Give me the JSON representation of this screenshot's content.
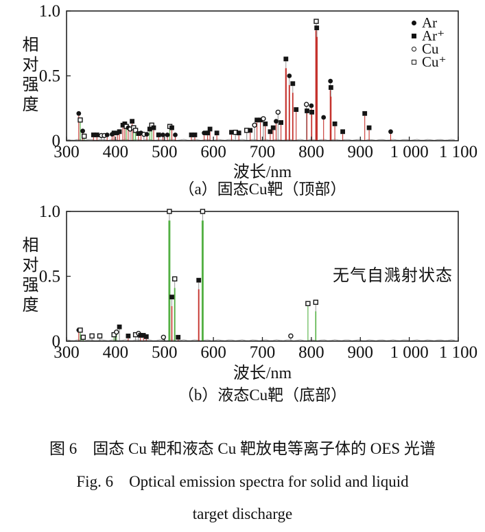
{
  "figure": {
    "caption_cn": "图 6　固态 Cu 靶和液态 Cu 靶放电等离子体的 OES 光谱",
    "caption_en_line1": "Fig. 6　Optical emission spectra for solid and liquid",
    "caption_en_line2": "target discharge"
  },
  "colors": {
    "stem_r": "#c5322d",
    "stem_g": "#53b043",
    "stem_k": "#8f8f8f",
    "marker": "#151515",
    "axis": "#222222",
    "baseline": "#9a9a9a",
    "background": "#ffffff"
  },
  "chart_data": [
    {
      "id": "a",
      "type": "scatter",
      "style": "stem-spectrum",
      "title": "（a）固态Cu靶（顶部）",
      "xlabel": "波长/nm",
      "ylabel": "相对强度",
      "xlim": [
        300,
        1100
      ],
      "ylim": [
        0,
        1.0
      ],
      "grid": false,
      "xticks": {
        "values": [
          300,
          400,
          500,
          600,
          700,
          800,
          900,
          1000,
          1100
        ],
        "labels": [
          "300",
          "400",
          "500",
          "600",
          "700",
          "800",
          "900",
          "1 000",
          "1 100"
        ]
      },
      "yticks": {
        "values": [
          0,
          0.5,
          1.0
        ],
        "labels": [
          "0",
          "0.5",
          "1.0"
        ]
      },
      "legend": {
        "position": "top-right-inside",
        "entries": [
          {
            "marker": "filled-circle",
            "label": "Ar"
          },
          {
            "marker": "filled-square",
            "label": "Ar⁺"
          },
          {
            "marker": "open-circle",
            "label": "Cu"
          },
          {
            "marker": "open-square",
            "label": "Cu⁺"
          }
        ]
      },
      "markers": {
        "Ar": "filled-circle",
        "Ar+": "filled-square",
        "Cu": "open-circle",
        "Cu+": "open-square"
      },
      "peaks_format": [
        "wavelength_nm",
        "relative_intensity",
        "species",
        "stem_color_key"
      ],
      "stem_color_keys": {
        "r": "stem_r",
        "g": "stem_g",
        "k": "stem_k"
      },
      "peaks": [
        [
          325,
          0.21,
          "Ar",
          "r"
        ],
        [
          328,
          0.16,
          "Cu+",
          "g"
        ],
        [
          333,
          0.075,
          "Ar",
          "r"
        ],
        [
          336,
          0.035,
          "Cu+",
          "g"
        ],
        [
          355,
          0.045,
          "Ar+",
          "r"
        ],
        [
          362,
          0.045,
          "Ar+",
          "r"
        ],
        [
          371,
          0.04,
          "Cu",
          "k"
        ],
        [
          377,
          0.04,
          "Cu",
          "k"
        ],
        [
          383,
          0.045,
          "Ar",
          "r"
        ],
        [
          393,
          0.05,
          "Ar",
          "r"
        ],
        [
          397,
          0.06,
          "Ar+",
          "r"
        ],
        [
          404,
          0.06,
          "Ar",
          "r"
        ],
        [
          408,
          0.07,
          "Ar+",
          "r"
        ],
        [
          415,
          0.12,
          "Ar+",
          "r"
        ],
        [
          419,
          0.13,
          "Ar+",
          "r"
        ],
        [
          422,
          0.11,
          "Cu+",
          "g"
        ],
        [
          426,
          0.1,
          "Ar",
          "r"
        ],
        [
          430,
          0.09,
          "Cu",
          "k"
        ],
        [
          434,
          0.15,
          "Ar+",
          "r"
        ],
        [
          437,
          0.1,
          "Cu+",
          "g"
        ],
        [
          441,
          0.08,
          "Cu+",
          "g"
        ],
        [
          447,
          0.055,
          "Ar+",
          "r"
        ],
        [
          452,
          0.06,
          "Ar",
          "r"
        ],
        [
          458,
          0.05,
          "Cu",
          "k"
        ],
        [
          464,
          0.05,
          "Ar",
          "r"
        ],
        [
          470,
          0.09,
          "Ar+",
          "g"
        ],
        [
          474,
          0.12,
          "Cu+",
          "g"
        ],
        [
          478,
          0.1,
          "Ar+",
          "r"
        ],
        [
          488,
          0.045,
          "Ar+",
          "r"
        ],
        [
          497,
          0.045,
          "Ar",
          "r"
        ],
        [
          506,
          0.045,
          "Ar",
          "r"
        ],
        [
          511,
          0.11,
          "Cu+",
          "g"
        ],
        [
          515,
          0.1,
          "Ar+",
          "r"
        ],
        [
          522,
          0.045,
          "Ar",
          "r"
        ],
        [
          555,
          0.045,
          "Ar+",
          "r"
        ],
        [
          562,
          0.045,
          "Ar+",
          "r"
        ],
        [
          581,
          0.06,
          "Ar",
          "r"
        ],
        [
          588,
          0.06,
          "Ar+",
          "r"
        ],
        [
          593,
          0.09,
          "Ar+",
          "r"
        ],
        [
          607,
          0.06,
          "Ar+",
          "r"
        ],
        [
          637,
          0.065,
          "Ar+",
          "r"
        ],
        [
          645,
          0.065,
          "Cu+",
          "k"
        ],
        [
          652,
          0.06,
          "Ar+",
          "r"
        ],
        [
          668,
          0.08,
          "Cu+",
          "k"
        ],
        [
          675,
          0.08,
          "Ar+",
          "r"
        ],
        [
          684,
          0.12,
          "Cu",
          "k"
        ],
        [
          689,
          0.16,
          "Ar+",
          "r"
        ],
        [
          696,
          0.16,
          "Ar+",
          "r"
        ],
        [
          702,
          0.17,
          "Cu",
          "k"
        ],
        [
          706,
          0.13,
          "Ar+",
          "r"
        ],
        [
          716,
          0.07,
          "Ar+",
          "r"
        ],
        [
          722,
          0.1,
          "Ar+",
          "r"
        ],
        [
          728,
          0.15,
          "Ar",
          "r"
        ],
        [
          732,
          0.22,
          "Cu",
          "k"
        ],
        [
          738,
          0.14,
          "Ar+",
          "r"
        ],
        [
          748,
          0.63,
          "Ar+",
          "r"
        ],
        [
          755,
          0.5,
          "Ar",
          "r"
        ],
        [
          762,
          0.44,
          "Ar+",
          "r"
        ],
        [
          769,
          0.24,
          "Ar+",
          "r"
        ],
        [
          790,
          0.28,
          "Cu",
          "k"
        ],
        [
          791,
          0.23,
          "Ar+",
          "r"
        ],
        [
          800,
          0.27,
          "Ar",
          "r"
        ],
        [
          801,
          0.22,
          "Ar+",
          "r"
        ],
        [
          810,
          0.92,
          "Cu+",
          "r"
        ],
        [
          811,
          0.87,
          "Ar+",
          "r"
        ],
        [
          825,
          0.18,
          "Ar",
          "r"
        ],
        [
          839,
          0.46,
          "Ar",
          "r"
        ],
        [
          840,
          0.41,
          "Ar+",
          "r"
        ],
        [
          848,
          0.13,
          "Ar+",
          "r"
        ],
        [
          864,
          0.07,
          "Ar+",
          "r"
        ],
        [
          909,
          0.21,
          "Ar+",
          "r"
        ],
        [
          918,
          0.1,
          "Ar+",
          "r"
        ],
        [
          962,
          0.07,
          "Ar",
          "r"
        ]
      ]
    },
    {
      "id": "b",
      "type": "scatter",
      "style": "stem-spectrum",
      "title": "（b）液态Cu靶（底部）",
      "xlabel": "波长/nm",
      "ylabel": "相对强度",
      "annotation": {
        "text": "无气自溅射状态",
        "position": "right-center"
      },
      "xlim": [
        300,
        1100
      ],
      "ylim": [
        0,
        1.0
      ],
      "grid": false,
      "xticks": {
        "values": [
          300,
          400,
          500,
          600,
          700,
          800,
          900,
          1000,
          1100
        ],
        "labels": [
          "300",
          "400",
          "500",
          "600",
          "700",
          "800",
          "900",
          "1 000",
          "1 100"
        ]
      },
      "yticks": {
        "values": [
          0,
          0.5,
          1.0
        ],
        "labels": [
          "0",
          "0.5",
          "1.0"
        ]
      },
      "markers": {
        "Ar": "filled-circle",
        "Ar+": "filled-square",
        "Cu": "open-circle",
        "Cu+": "open-square"
      },
      "peaks_format": [
        "wavelength_nm",
        "relative_intensity",
        "species",
        "stem_color_key"
      ],
      "stem_color_keys": {
        "r": "stem_r",
        "g": "stem_g",
        "k": "stem_k"
      },
      "peaks": [
        [
          325,
          0.085,
          "Ar",
          "r"
        ],
        [
          328,
          0.085,
          "Cu+",
          "g"
        ],
        [
          334,
          0.03,
          "Cu+",
          "g"
        ],
        [
          352,
          0.04,
          "Cu+",
          "k"
        ],
        [
          368,
          0.04,
          "Cu+",
          "k"
        ],
        [
          397,
          0.05,
          "Cu+",
          "g"
        ],
        [
          402,
          0.07,
          "Cu",
          "g"
        ],
        [
          408,
          0.11,
          "Ar+",
          "k"
        ],
        [
          426,
          0.04,
          "Ar+",
          "r"
        ],
        [
          441,
          0.05,
          "Cu+",
          "k"
        ],
        [
          447,
          0.06,
          "Cu",
          "k"
        ],
        [
          451,
          0.045,
          "Ar+",
          "r"
        ],
        [
          457,
          0.045,
          "Ar+",
          "r"
        ],
        [
          463,
          0.035,
          "Ar+",
          "r"
        ],
        [
          498,
          0.03,
          "Cu",
          "k"
        ],
        [
          510,
          1.0,
          "Cu+",
          "g"
        ],
        [
          515,
          0.34,
          "Ar+",
          "r"
        ],
        [
          521,
          0.48,
          "Cu+",
          "g"
        ],
        [
          528,
          0.03,
          "Ar+",
          "r"
        ],
        [
          570,
          0.47,
          "Ar+",
          "r"
        ],
        [
          578,
          1.0,
          "Cu+",
          "g"
        ],
        [
          758,
          0.04,
          "Cu",
          "k"
        ],
        [
          793,
          0.29,
          "Cu+",
          "g"
        ],
        [
          809,
          0.3,
          "Cu+",
          "g"
        ]
      ]
    }
  ]
}
